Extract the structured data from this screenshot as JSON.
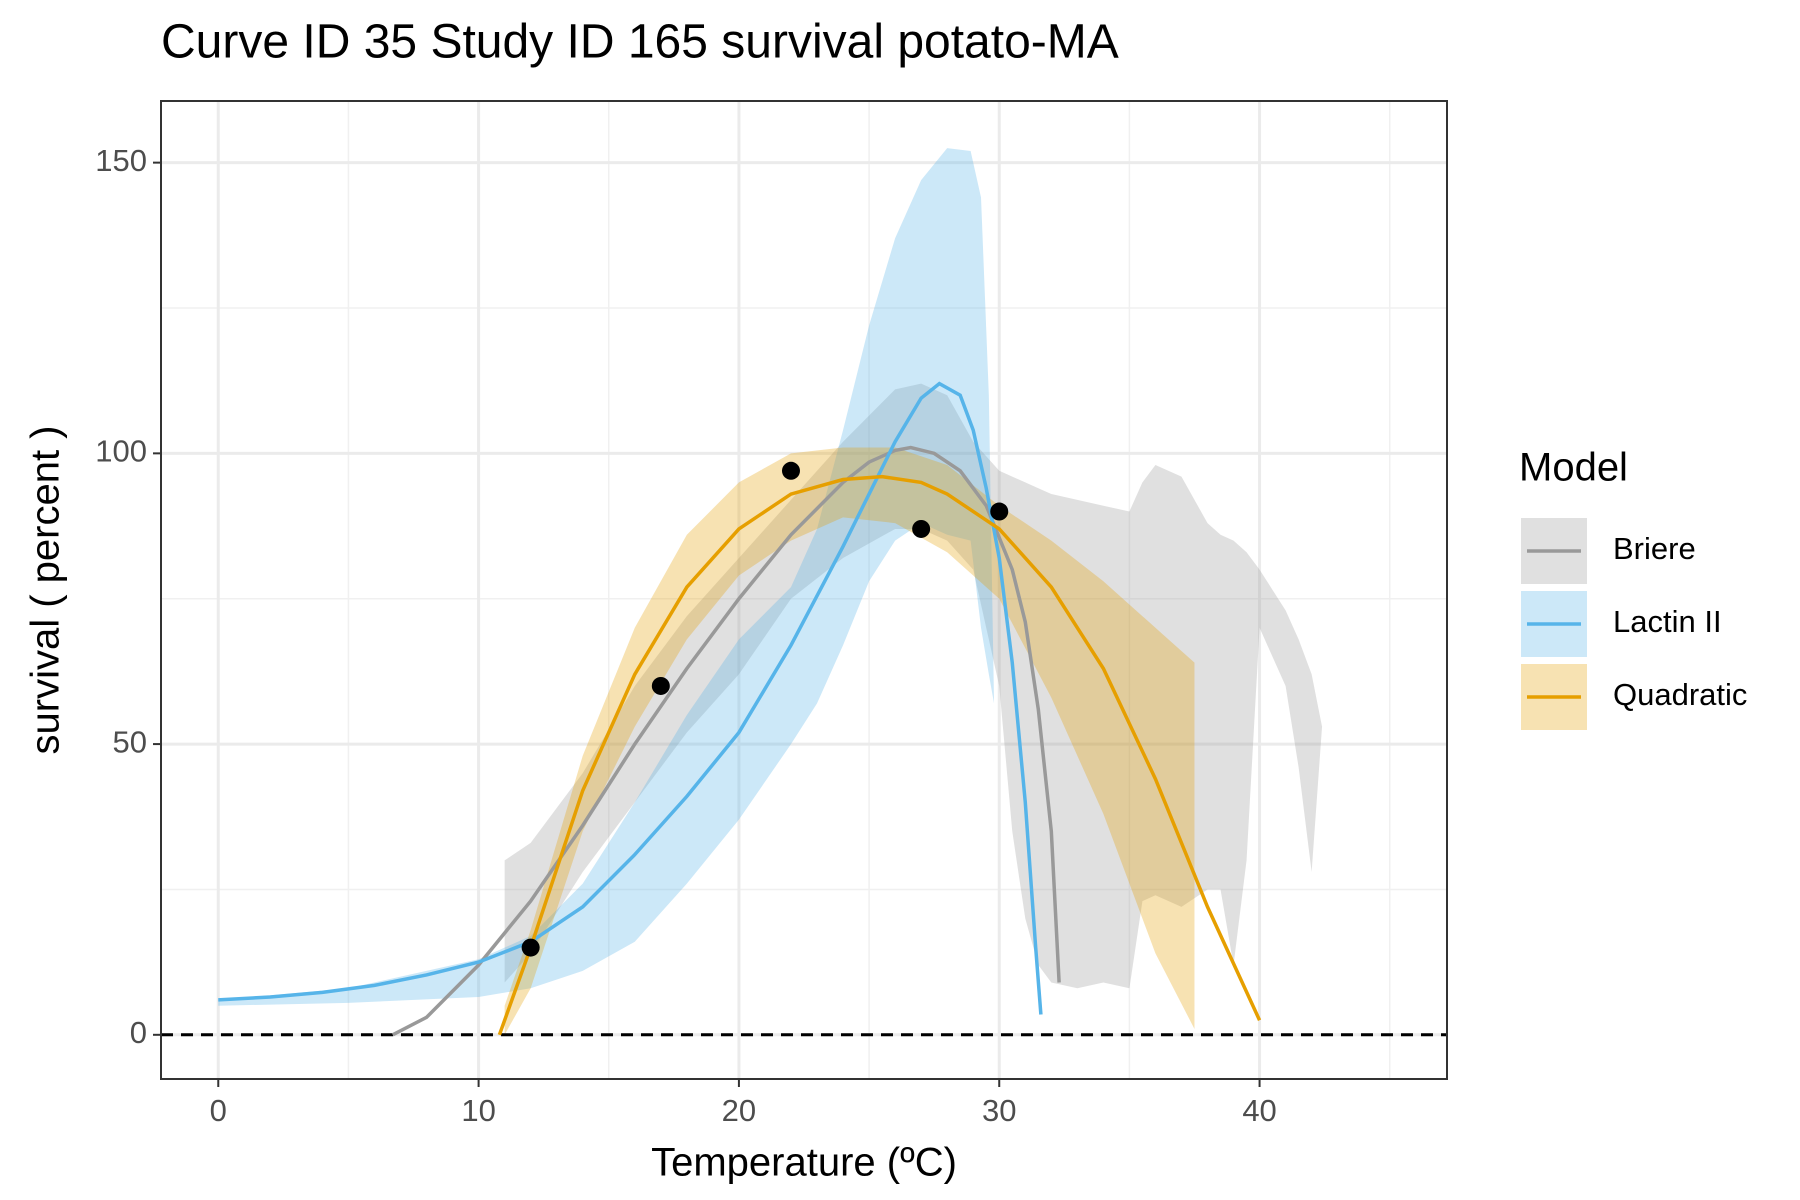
{
  "chart_data": {
    "type": "line",
    "title": "Curve ID 35 Study ID 165 survival potato-MA",
    "x_label": "Temperature (ºC)",
    "y_label": "survival ( percent )",
    "legend_title": "Model",
    "xlim": [
      -2.2,
      47.2
    ],
    "xticks": [
      0,
      10,
      20,
      30,
      40
    ],
    "ylim": [
      -7.6,
      160.6
    ],
    "yticks": [
      0,
      50,
      100,
      150
    ],
    "grid": true,
    "hline": 0,
    "series": [
      {
        "name": "Briere",
        "color": "#999999",
        "fill": "#999999",
        "x": [
          6.7,
          8,
          10,
          12,
          14,
          16,
          18,
          20,
          22,
          24,
          25,
          26,
          26.6,
          27.5,
          28.5,
          29.5,
          30.5,
          31,
          31.5,
          32,
          32.3
        ],
        "values": [
          0,
          3,
          12,
          23,
          36,
          50,
          63,
          75,
          86,
          95,
          98.5,
          100.5,
          101,
          100,
          97,
          91,
          80,
          71,
          56,
          35,
          9
        ],
        "ribbon": {
          "x": [
            11,
            12,
            14,
            16,
            18,
            20,
            22,
            24,
            26,
            27,
            28,
            29,
            30,
            30.5,
            31,
            31.5,
            32,
            33,
            34,
            35,
            35.5,
            36,
            37,
            38,
            38.5,
            39,
            39.5,
            40,
            41,
            41.5,
            42,
            42.4
          ],
          "upper": [
            30,
            33,
            45,
            60,
            72,
            82,
            92,
            102,
            111,
            112,
            110,
            102,
            97,
            96,
            95,
            94,
            93,
            92,
            91,
            90,
            95,
            98,
            96,
            88,
            86,
            85,
            83,
            80,
            73,
            68,
            62,
            53
          ],
          "lower": [
            9,
            14,
            28,
            40,
            52,
            62,
            75,
            82,
            87,
            87,
            85,
            80,
            60,
            35,
            20,
            12,
            9,
            8,
            9,
            8,
            23,
            24,
            22,
            25,
            25,
            12,
            30,
            70,
            60,
            46,
            28,
            53
          ]
        }
      },
      {
        "name": "Lactin II",
        "color": "#56B4E9",
        "fill": "#56B4E9",
        "x": [
          0,
          2,
          4,
          6,
          8,
          10,
          12,
          14,
          16,
          18,
          20,
          22,
          24,
          25,
          26,
          27,
          27.7,
          28.5,
          29,
          29.5,
          30,
          30.5,
          31,
          31.4,
          31.6
        ],
        "values": [
          6,
          6.5,
          7.3,
          8.5,
          10.3,
          12.5,
          16,
          22,
          31,
          41,
          52,
          67,
          84,
          93,
          102,
          109.5,
          112,
          110,
          104,
          94,
          82,
          64,
          40,
          15,
          3.5
        ],
        "ribbon": {
          "x": [
            0,
            5,
            10,
            12,
            14,
            16,
            18,
            20,
            22,
            23,
            24,
            25,
            26,
            27,
            28,
            28.9,
            29.3,
            29.6,
            29.8
          ],
          "upper": [
            6,
            8,
            13,
            17,
            26,
            40,
            55,
            68,
            77,
            87,
            104,
            122,
            137,
            147,
            152.5,
            152,
            144,
            110,
            57
          ],
          "lower": [
            5,
            5.5,
            6.5,
            8,
            11,
            16,
            26,
            37,
            50,
            57,
            67,
            78,
            85,
            88,
            86,
            85,
            70,
            62,
            57
          ]
        }
      },
      {
        "name": "Quadratic",
        "color": "#E69F00",
        "fill": "#E69F00",
        "x": [
          10.8,
          12,
          14,
          16,
          18,
          20,
          22,
          24,
          25.5,
          27,
          28,
          30,
          32,
          34,
          36,
          38,
          40
        ],
        "values": [
          0,
          15,
          42,
          62,
          77,
          87,
          93,
          95.5,
          96,
          95,
          93,
          87,
          77,
          63,
          44,
          22,
          2.5
        ],
        "ribbon": {
          "x": [
            11,
            12,
            14,
            16,
            18,
            20,
            22,
            24,
            26,
            28,
            30,
            32,
            34,
            36,
            37.5
          ],
          "upper": [
            5,
            18,
            48,
            70,
            86,
            95,
            100,
            101,
            101,
            98,
            91,
            85,
            78,
            70,
            64
          ],
          "lower": [
            0,
            8,
            35,
            53,
            68,
            79,
            85,
            89,
            88,
            83,
            75,
            58,
            38,
            14,
            1
          ]
        }
      }
    ],
    "points": {
      "x": [
        12,
        17,
        22,
        27,
        30
      ],
      "values": [
        15,
        60,
        97,
        87,
        90
      ],
      "color": "#000000"
    }
  }
}
